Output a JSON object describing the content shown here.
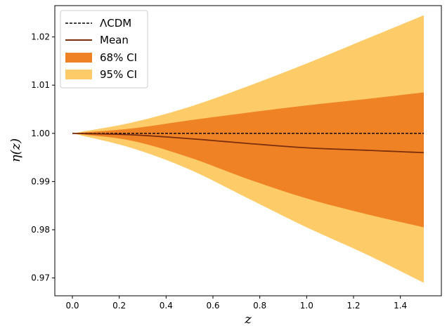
{
  "chart_data": {
    "type": "area",
    "title": "",
    "xlabel": "z",
    "ylabel": "η(z)",
    "xlim": [
      -0.075,
      1.575
    ],
    "ylim": [
      0.9663,
      1.0265
    ],
    "grid": false,
    "legend_position": "upper left",
    "x_ticks": [
      "0.0",
      "0.2",
      "0.4",
      "0.6",
      "0.8",
      "1.0",
      "1.2",
      "1.4"
    ],
    "x_tick_values": [
      0.0,
      0.2,
      0.4,
      0.6,
      0.8,
      1.0,
      1.2,
      1.4
    ],
    "y_ticks": [
      "0.97",
      "0.98",
      "0.99",
      "1.00",
      "1.01",
      "1.02"
    ],
    "y_tick_values": [
      0.97,
      0.98,
      0.99,
      1.0,
      1.01,
      1.02
    ],
    "x": [
      0.0,
      0.25,
      0.5,
      0.75,
      1.0,
      1.25,
      1.5
    ],
    "series": [
      {
        "name": "ΛCDM",
        "kind": "line",
        "style": "dashed",
        "color": "#000000",
        "values": [
          1.0,
          1.0,
          1.0,
          1.0,
          1.0,
          1.0,
          1.0
        ]
      },
      {
        "name": "Mean",
        "kind": "line",
        "style": "solid",
        "color": "#7a2e0e",
        "values": [
          1.0,
          0.9997,
          0.9989,
          0.9979,
          0.997,
          0.9965,
          0.996
        ]
      },
      {
        "name": "68% CI",
        "kind": "band",
        "color": "#f08226",
        "lower": [
          1.0,
          0.9985,
          0.995,
          0.9905,
          0.9865,
          0.9833,
          0.9805
        ],
        "upper": [
          1.0,
          1.001,
          1.0027,
          1.0043,
          1.0058,
          1.0071,
          1.0085
        ]
      },
      {
        "name": "95% CI",
        "kind": "band",
        "color": "#fdcc69",
        "lower": [
          1.0,
          0.997,
          0.9925,
          0.9865,
          0.9805,
          0.975,
          0.969
        ],
        "upper": [
          1.0,
          1.0022,
          1.0055,
          1.0098,
          1.0145,
          1.0195,
          1.0245
        ]
      }
    ]
  }
}
